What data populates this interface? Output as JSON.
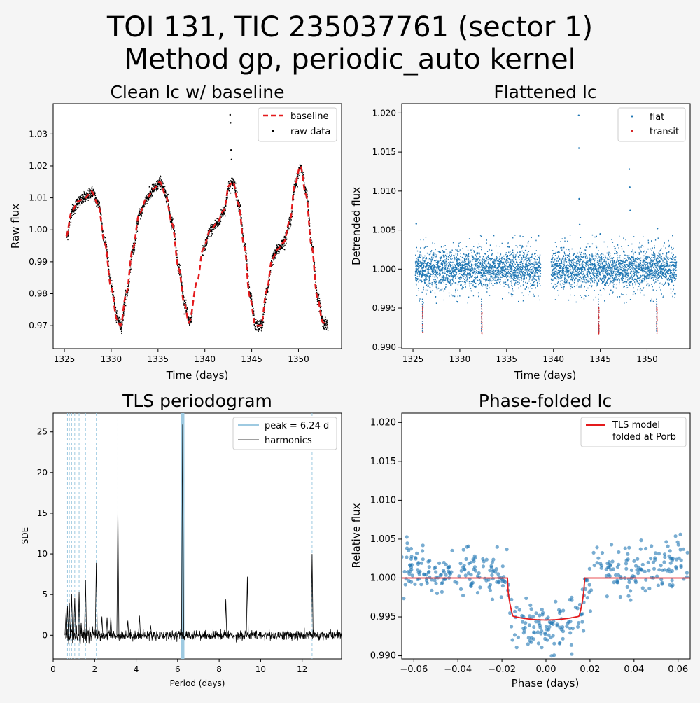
{
  "figure": {
    "title_line1": "TOI 131, TIC 235037761 (sector 1)",
    "title_line2": "Method gp, periodic_auto kernel"
  },
  "colors": {
    "baseline": "#e41a1c",
    "raw": "#000000",
    "flat": "#1f77b4",
    "transit": "#d62728",
    "peak": "#9ecae1",
    "model": "#e41a1c"
  },
  "chart_data": [
    {
      "id": "clean",
      "type": "scatter",
      "title": "Clean lc w/ baseline",
      "xlabel": "Time (days)",
      "ylabel": "Raw flux",
      "xlim": [
        1323.8,
        1354.6
      ],
      "ylim": [
        0.9628,
        1.0395
      ],
      "xticks": [
        1325,
        1330,
        1335,
        1340,
        1345,
        1350
      ],
      "yticks": [
        0.97,
        0.98,
        0.99,
        1.0,
        1.01,
        1.02,
        1.03
      ],
      "ytick_labels": [
        "0.97",
        "0.98",
        "0.99",
        "1.00",
        "1.01",
        "1.02",
        "1.03"
      ],
      "legend": {
        "position": "top-right",
        "entries": [
          "baseline",
          "raw data"
        ]
      },
      "baseline_knots": [
        [
          1325.2,
          0.998
        ],
        [
          1325.8,
          1.006
        ],
        [
          1326.5,
          1.009
        ],
        [
          1327.2,
          1.01
        ],
        [
          1327.9,
          1.012
        ],
        [
          1328.6,
          1.008
        ],
        [
          1329.3,
          0.996
        ],
        [
          1330.0,
          0.982
        ],
        [
          1330.6,
          0.972
        ],
        [
          1331.0,
          0.97
        ],
        [
          1331.6,
          0.98
        ],
        [
          1332.3,
          0.994
        ],
        [
          1333.0,
          1.005
        ],
        [
          1333.8,
          1.01
        ],
        [
          1334.6,
          1.013
        ],
        [
          1335.2,
          1.015
        ],
        [
          1335.8,
          1.011
        ],
        [
          1336.5,
          1.002
        ],
        [
          1337.2,
          0.988
        ],
        [
          1337.8,
          0.977
        ],
        [
          1338.3,
          0.971
        ],
        [
          1339.2,
          0.984
        ],
        [
          1339.8,
          0.994
        ],
        [
          1340.6,
          1.0
        ],
        [
          1341.3,
          1.002
        ],
        [
          1342.0,
          1.006
        ],
        [
          1342.6,
          1.014
        ],
        [
          1343.0,
          1.015
        ],
        [
          1343.6,
          1.008
        ],
        [
          1344.2,
          0.995
        ],
        [
          1344.8,
          0.979
        ],
        [
          1345.4,
          0.97
        ],
        [
          1346.0,
          0.97
        ],
        [
          1346.6,
          0.981
        ],
        [
          1347.2,
          0.991
        ],
        [
          1347.8,
          0.994
        ],
        [
          1348.4,
          0.996
        ],
        [
          1349.1,
          1.003
        ],
        [
          1349.6,
          1.014
        ],
        [
          1350.2,
          1.02
        ],
        [
          1350.8,
          1.011
        ],
        [
          1351.4,
          0.995
        ],
        [
          1352.0,
          0.979
        ],
        [
          1352.6,
          0.971
        ],
        [
          1353.1,
          0.97
        ]
      ],
      "gap": [
        1338.6,
        1339.7
      ],
      "outliers": [
        [
          1342.7,
          1.036
        ],
        [
          1342.75,
          1.0335
        ],
        [
          1342.8,
          1.025
        ],
        [
          1342.85,
          1.022
        ]
      ]
    },
    {
      "id": "flat",
      "type": "scatter",
      "title": "Flattened lc",
      "xlabel": "Time (days)",
      "ylabel": "Detrended flux",
      "xlim": [
        1323.8,
        1354.6
      ],
      "ylim": [
        0.9898,
        1.0212
      ],
      "xticks": [
        1325,
        1330,
        1335,
        1340,
        1345,
        1350
      ],
      "yticks": [
        0.99,
        0.995,
        1.0,
        1.005,
        1.01,
        1.015,
        1.02
      ],
      "ytick_labels": [
        "0.990",
        "0.995",
        "1.000",
        "1.005",
        "1.010",
        "1.015",
        "1.020"
      ],
      "legend": {
        "position": "top-right",
        "entries": [
          "flat",
          "transit"
        ]
      },
      "time_range": [
        1325.2,
        1353.1
      ],
      "gap": [
        1338.6,
        1339.7
      ],
      "transit_times": [
        1326.0,
        1332.3,
        1344.8,
        1351.0
      ],
      "outliers": [
        [
          1342.7,
          1.0197
        ],
        [
          1342.72,
          1.0155
        ],
        [
          1342.75,
          1.009
        ],
        [
          1342.8,
          1.0057
        ],
        [
          1348.1,
          1.0128
        ],
        [
          1348.15,
          1.0105
        ],
        [
          1348.2,
          1.0075
        ],
        [
          1325.35,
          1.0058
        ],
        [
          1345.0,
          1.0045
        ],
        [
          1351.1,
          1.0052
        ]
      ]
    },
    {
      "id": "tls",
      "type": "line",
      "title": "TLS periodogram",
      "xlabel": "Period (days)",
      "ylabel": "SDE",
      "xlim": [
        0.0,
        13.9
      ],
      "ylim": [
        -2.9,
        27.3
      ],
      "xticks": [
        0,
        2,
        4,
        6,
        8,
        10,
        12
      ],
      "yticks": [
        0,
        5,
        10,
        15,
        20,
        25
      ],
      "legend": {
        "position": "top-right",
        "entries": [
          "peak = 6.24 d",
          "harmonics"
        ]
      },
      "peak_period": 6.24,
      "harmonic_lines": [
        0.69,
        0.78,
        0.89,
        1.04,
        1.25,
        1.56,
        2.08,
        3.12,
        12.48
      ],
      "spikes": [
        [
          0.62,
          2.8
        ],
        [
          0.69,
          3.6
        ],
        [
          0.78,
          4.0
        ],
        [
          0.89,
          5.1
        ],
        [
          1.04,
          4.6
        ],
        [
          1.25,
          5.3
        ],
        [
          1.56,
          6.8
        ],
        [
          2.08,
          8.9
        ],
        [
          3.12,
          15.8
        ],
        [
          6.24,
          25.9
        ],
        [
          12.48,
          10.0
        ],
        [
          9.36,
          7.2
        ],
        [
          8.32,
          4.4
        ],
        [
          4.16,
          2.4
        ],
        [
          1.35,
          1.5
        ],
        [
          2.35,
          2.3
        ],
        [
          2.6,
          2.2
        ],
        [
          2.78,
          2.3
        ],
        [
          3.6,
          1.8
        ],
        [
          4.7,
          1.2
        ]
      ]
    },
    {
      "id": "phase",
      "type": "scatter",
      "title": "Phase-folded lc",
      "xlabel": "Phase (days)",
      "ylabel": "Relative flux",
      "xlim": [
        -0.0655,
        0.0655
      ],
      "ylim": [
        0.9896,
        1.0212
      ],
      "xticks": [
        -0.06,
        -0.04,
        -0.02,
        0.0,
        0.02,
        0.04,
        0.06
      ],
      "xtick_labels": [
        "−0.06",
        "−0.04",
        "−0.02",
        "0.00",
        "0.02",
        "0.04",
        "0.06"
      ],
      "yticks": [
        0.99,
        0.995,
        1.0,
        1.005,
        1.01,
        1.015,
        1.02
      ],
      "ytick_labels": [
        "0.990",
        "0.995",
        "1.000",
        "1.005",
        "1.010",
        "1.015",
        "1.020"
      ],
      "legend": {
        "position": "top-right",
        "entries": [
          "TLS model\nfolded at Porb"
        ]
      },
      "legend_line1": "TLS model",
      "legend_line2": "folded at Porb",
      "transit_half_width": 0.0175,
      "depth": 0.0054
    }
  ]
}
